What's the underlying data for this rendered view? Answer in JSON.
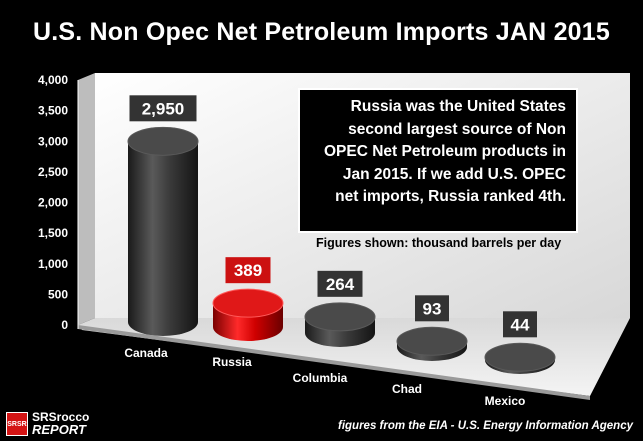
{
  "title": "U.S. Non Opec Net Petroleum Imports JAN 2015",
  "annotation_lines": [
    "Russia was the United States",
    "second largest source of Non",
    "OPEC Net Petroleum products in",
    "Jan 2015.  If we add U.S. OPEC",
    "net imports, Russia ranked 4th."
  ],
  "units_note": "Figures shown:  thousand barrels per day",
  "source": "figures from the EIA - U.S. Energy Information Agency",
  "logo": {
    "badge": "SRSR",
    "line1": "SRSrocco",
    "line2": "REPORT"
  },
  "chart_data": {
    "type": "bar",
    "categories": [
      "Canada",
      "Russia",
      "Columbia",
      "Chad",
      "Mexico"
    ],
    "values": [
      2950,
      389,
      264,
      93,
      44
    ],
    "value_labels": [
      "2,950",
      "389",
      "264",
      "93",
      "44"
    ],
    "ylim": [
      0,
      4000
    ],
    "yticks": [
      "0",
      "500",
      "1,000",
      "1,500",
      "2,000",
      "2,500",
      "3,000",
      "3,500",
      "4,000"
    ],
    "colors": {
      "default": "#3a3a3a",
      "highlight": "#cc0000",
      "label_box": "#333333",
      "highlight_label_box": "#cc1111"
    },
    "highlight_index": 1,
    "grid": false
  }
}
